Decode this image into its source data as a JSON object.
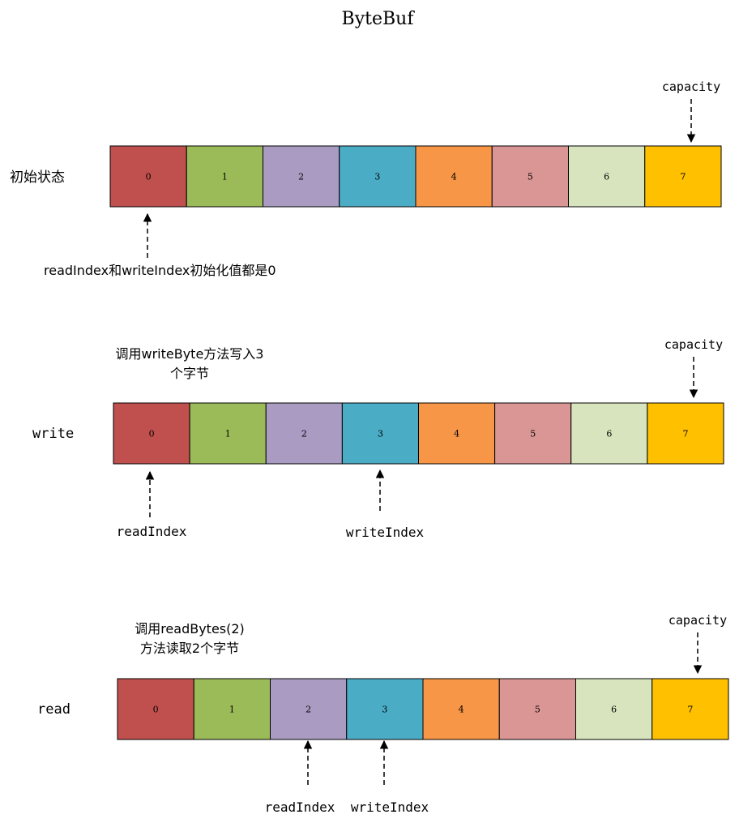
{
  "title": "ByteBuf",
  "cell_labels": [
    "0",
    "1",
    "2",
    "3",
    "4",
    "5",
    "6",
    "7"
  ],
  "cell_colors": [
    "#c0504d",
    "#9bbb59",
    "#a99bc1",
    "#4bacc6",
    "#f79646",
    "#da9694",
    "#d7e4bd",
    "#ffc000"
  ],
  "capacity_label": "capacity",
  "rows": [
    {
      "row_label": "初始状态",
      "note": [
        "readIndex和writeIndex初始化值都是0"
      ],
      "pointers": []
    },
    {
      "row_label": "write",
      "note": [
        "调用writeByte方法写入3",
        "个字节"
      ],
      "pointers": [
        {
          "label": "readIndex",
          "cell": 0
        },
        {
          "label": "writeIndex",
          "cell": 3
        }
      ]
    },
    {
      "row_label": "read",
      "note": [
        "调用readBytes(2)",
        "方法读取2个字节"
      ],
      "pointers": [
        {
          "label": "readIndex",
          "cell": 2
        },
        {
          "label": "writeIndex",
          "cell": 3
        }
      ]
    }
  ]
}
